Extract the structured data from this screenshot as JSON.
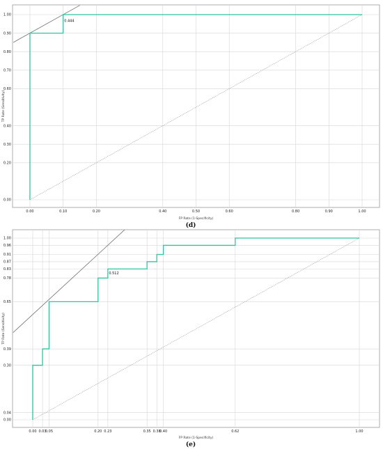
{
  "colors": {
    "roc": "#2ec4a0",
    "reference": "#9a9a9a",
    "tangent": "#707070",
    "grid": "#d6d6d6",
    "frame": "#9a9a9a"
  },
  "chart_data": [
    {
      "type": "line",
      "panel_label": "(d)",
      "xlabel": "FP Rate (1-Specificity)",
      "ylabel": "TP Rate (Sensitivity)",
      "xticks": [
        "0.00",
        "0.10",
        "0.20",
        "0.40",
        "0.50",
        "0.60",
        "0.80",
        "0.90",
        "1.00"
      ],
      "xtick_values": [
        0,
        0.1,
        0.2,
        0.4,
        0.5,
        0.6,
        0.8,
        0.9,
        1.0
      ],
      "yticks": [
        "0.00",
        "0.20",
        "0.30",
        "0.40",
        "0.60",
        "0.70",
        "0.80",
        "0.90",
        "1.00"
      ],
      "ytick_values": [
        0,
        0.2,
        0.3,
        0.4,
        0.6,
        0.7,
        0.8,
        0.9,
        1.0
      ],
      "xlim": [
        0,
        1
      ],
      "ylim": [
        0,
        1
      ],
      "grid": true,
      "roc": {
        "x": [
          0,
          0,
          0.1,
          0.1,
          1.0
        ],
        "y": [
          0,
          0.9,
          0.9,
          1.0,
          1.0
        ]
      },
      "reference_line": {
        "x": [
          0,
          1
        ],
        "y": [
          0,
          1
        ]
      },
      "tangent_line": {
        "x": [
          -0.05,
          0.15
        ],
        "y": [
          0.85,
          1.05
        ]
      },
      "annotation": {
        "text": "0.444",
        "x": 0.1,
        "y": 0.96
      }
    },
    {
      "type": "line",
      "panel_label": "(e)",
      "xlabel": "FP Rate (1-Specificity)",
      "ylabel": "TP Rate (Sensitivity)",
      "xticks": [
        "0.00",
        "0.03",
        "0.05",
        "0.20",
        "0.23",
        "0.35",
        "0.38",
        "0.40",
        "0.62",
        "1.00"
      ],
      "xtick_values": [
        0,
        0.03,
        0.05,
        0.2,
        0.23,
        0.35,
        0.38,
        0.4,
        0.62,
        1.0
      ],
      "yticks": [
        "0.00",
        "0.04",
        "0.30",
        "0.39",
        "0.65",
        "0.78",
        "0.83",
        "0.87",
        "0.91",
        "0.96",
        "1.00"
      ],
      "ytick_values": [
        0,
        0.04,
        0.3,
        0.39,
        0.65,
        0.78,
        0.83,
        0.87,
        0.91,
        0.96,
        1.0
      ],
      "xlim": [
        0,
        1
      ],
      "ylim": [
        0,
        1
      ],
      "grid": true,
      "roc": {
        "x": [
          0,
          0,
          0.03,
          0.03,
          0.05,
          0.05,
          0.2,
          0.2,
          0.23,
          0.23,
          0.35,
          0.35,
          0.38,
          0.38,
          0.4,
          0.4,
          0.62,
          0.62,
          1.0
        ],
        "y": [
          0,
          0.3,
          0.3,
          0.39,
          0.39,
          0.65,
          0.65,
          0.78,
          0.78,
          0.83,
          0.83,
          0.87,
          0.87,
          0.91,
          0.91,
          0.96,
          0.96,
          1.0,
          1.0
        ]
      },
      "reference_line": {
        "x": [
          0,
          1
        ],
        "y": [
          0,
          1
        ]
      },
      "tangent_line": {
        "x": [
          -0.06,
          0.29
        ],
        "y": [
          0.48,
          1.06
        ]
      },
      "annotation": {
        "text": "0.512",
        "x": 0.23,
        "y": 0.8
      }
    }
  ]
}
